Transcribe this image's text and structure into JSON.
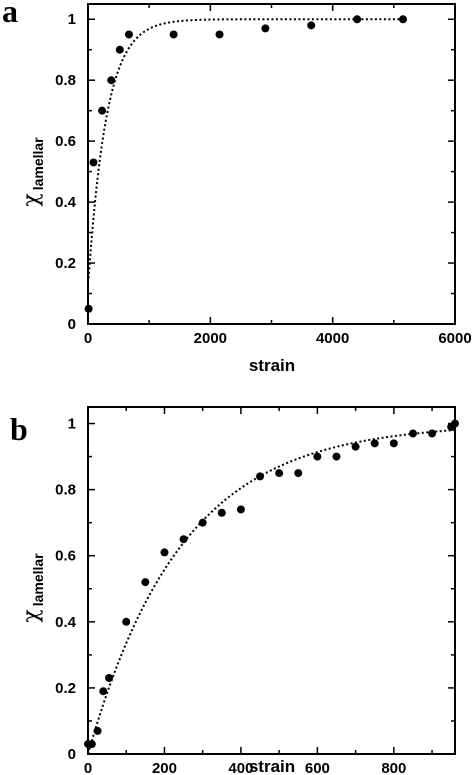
{
  "chart_data": [
    {
      "type": "scatter",
      "panel": "a",
      "xlabel": "strain",
      "ylabel_symbol": "χ",
      "ylabel_subscript": "lamellar",
      "xlim": [
        0,
        6000
      ],
      "ylim": [
        0,
        1.05
      ],
      "xticks": [
        0,
        2000,
        4000,
        6000
      ],
      "yticks": [
        0,
        0.2,
        0.4,
        0.6,
        0.8,
        1
      ],
      "xtick_labels": [
        "0",
        "2000",
        "4000",
        "6000"
      ],
      "ytick_labels": [
        "0",
        "0.2",
        "0.4",
        "0.6",
        "0.8",
        "1"
      ],
      "series": [
        {
          "type": "scatter",
          "x": [
            10,
            90,
            230,
            380,
            520,
            670,
            1400,
            2150,
            2900,
            3650,
            4400,
            5150
          ],
          "y": [
            0.05,
            0.53,
            0.7,
            0.8,
            0.9,
            0.95,
            0.95,
            0.95,
            0.97,
            0.98,
            1.0,
            1.0
          ]
        },
        {
          "type": "line",
          "style": "dotted",
          "fit": {
            "kind": "exponential",
            "y0": 0.15,
            "ymax": 1.0,
            "tau": 300,
            "x_start": 10,
            "x_end": 5150
          }
        }
      ]
    },
    {
      "type": "scatter",
      "panel": "b",
      "xlabel": "strain",
      "ylabel_symbol": "χ",
      "ylabel_subscript": "lamellar",
      "xlim": [
        0,
        960
      ],
      "ylim": [
        0,
        1.05
      ],
      "xticks": [
        0,
        200,
        400,
        600,
        800
      ],
      "yticks": [
        0,
        0.2,
        0.4,
        0.6,
        0.8,
        1
      ],
      "xtick_labels": [
        "0",
        "200",
        "400",
        "600",
        "800"
      ],
      "ytick_labels": [
        "0",
        "0.2",
        "0.4",
        "0.6",
        "0.8",
        "1"
      ],
      "series": [
        {
          "type": "scatter",
          "x": [
            0,
            10,
            25,
            40,
            55,
            100,
            150,
            200,
            250,
            300,
            350,
            400,
            450,
            500,
            550,
            600,
            650,
            700,
            750,
            800,
            850,
            900,
            950,
            960
          ],
          "y": [
            0.03,
            0.03,
            0.07,
            0.19,
            0.23,
            0.4,
            0.52,
            0.61,
            0.65,
            0.7,
            0.73,
            0.74,
            0.84,
            0.85,
            0.85,
            0.9,
            0.9,
            0.93,
            0.94,
            0.94,
            0.97,
            0.97,
            0.99,
            1.0
          ]
        },
        {
          "type": "line",
          "style": "dotted",
          "fit": {
            "kind": "exponential",
            "y0": 0.0,
            "ymax": 1.0,
            "tau": 245,
            "x_start": 0,
            "x_end": 960
          }
        }
      ]
    }
  ]
}
